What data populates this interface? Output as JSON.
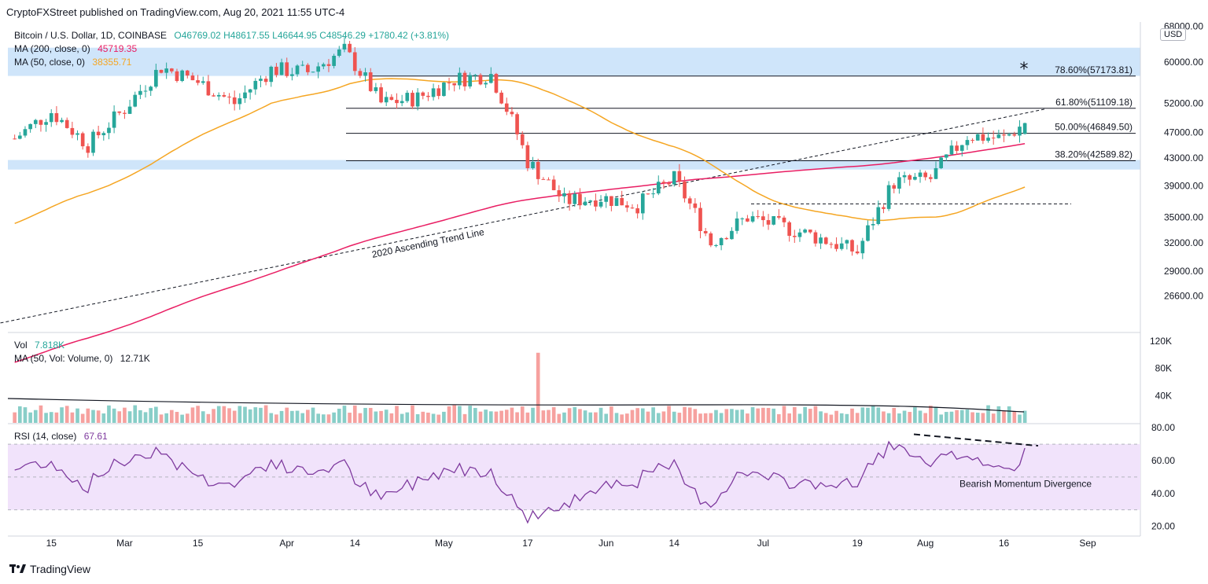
{
  "header": {
    "published": "CryptoFXStreet published on TradingView.com, Aug 20, 2021 11:55 UTC-4"
  },
  "legend": {
    "symbol": "Bitcoin / U.S. Dollar, 1D, COINBASE",
    "ohlc": "O46769.02  H48617.55  L46644.95  C48546.29  +1780.42 (+3.81%)",
    "ma200_label": "MA (200, close, 0)",
    "ma200_value": "45719.35",
    "ma50_label": "MA (50, close, 0)",
    "ma50_value": "38355.71",
    "vol_label": "Vol",
    "vol_value": "7.818K",
    "volma_label": "MA (50, Vol: Volume, 0)",
    "volma_value": "12.71K",
    "rsi_label": "RSI (14, close)",
    "rsi_value": "67.61"
  },
  "currency": "USD",
  "brand": "TradingView",
  "colors": {
    "up": "#26a69a",
    "down": "#ef5350",
    "ma200": "#e91e63",
    "ma50": "#f5a623",
    "rsi": "#7e3a9e",
    "zone": "#cfe5fa",
    "rsi_band": "#f1e3fb"
  },
  "chart_data": [
    {
      "type": "candlestick",
      "panel": "price",
      "x_tick_labels": [
        "15",
        "Mar",
        "15",
        "Apr",
        "14",
        "May",
        "17",
        "Jun",
        "14",
        "Jul",
        "19",
        "Aug",
        "16",
        "Sep"
      ],
      "y_tick_labels": [
        "68000.00",
        "60000.00",
        "52000.00",
        "47000.00",
        "43000.00",
        "39000.00",
        "35000.00",
        "32000.00",
        "29000.00",
        "26600.00"
      ],
      "y_scale": "log",
      "ylim": [
        23500,
        69000
      ],
      "fibonacci": [
        {
          "label": "78.60%(57173.81)",
          "value": 57173.81
        },
        {
          "label": "61.80%(51109.18)",
          "value": 51109.18
        },
        {
          "label": "50.00%(46849.50)",
          "value": 46849.5
        },
        {
          "label": "38.20%(42589.82)",
          "value": 42589.82
        }
      ],
      "support_level": 36650,
      "zones": [
        [
          57200,
          63100
        ],
        [
          41300,
          42700
        ]
      ],
      "annotations": [
        "2020 Ascending Trend Line",
        "*"
      ],
      "trend_line": [
        [
          "2021-01-27",
          23400
        ],
        [
          "2021-08-24",
          51000
        ]
      ],
      "last_candle": {
        "date": "2021-08-20",
        "open": 46769.02,
        "high": 48617.55,
        "low": 46644.95,
        "close": 48546.29
      },
      "closes_weekly": [
        {
          "date": "2021-02-08",
          "close": 46000
        },
        {
          "date": "2021-02-15",
          "close": 50500
        },
        {
          "date": "2021-02-22",
          "close": 45000
        },
        {
          "date": "2021-03-01",
          "close": 51000
        },
        {
          "date": "2021-03-08",
          "close": 59000
        },
        {
          "date": "2021-03-15",
          "close": 56000
        },
        {
          "date": "2021-03-22",
          "close": 52000
        },
        {
          "date": "2021-03-29",
          "close": 58500
        },
        {
          "date": "2021-04-05",
          "close": 58000
        },
        {
          "date": "2021-04-12",
          "close": 62500
        },
        {
          "date": "2021-04-19",
          "close": 52000
        },
        {
          "date": "2021-04-26",
          "close": 53000
        },
        {
          "date": "2021-05-03",
          "close": 56500
        },
        {
          "date": "2021-05-10",
          "close": 57500
        },
        {
          "date": "2021-05-17",
          "close": 42500
        },
        {
          "date": "2021-05-24",
          "close": 37000
        },
        {
          "date": "2021-05-31",
          "close": 37500
        },
        {
          "date": "2021-06-07",
          "close": 36500
        },
        {
          "date": "2021-06-14",
          "close": 40000
        },
        {
          "date": "2021-06-21",
          "close": 32000
        },
        {
          "date": "2021-06-28",
          "close": 35000
        },
        {
          "date": "2021-07-05",
          "close": 33800
        },
        {
          "date": "2021-07-12",
          "close": 32500
        },
        {
          "date": "2021-07-19",
          "close": 31000
        },
        {
          "date": "2021-07-26",
          "close": 39500
        },
        {
          "date": "2021-08-02",
          "close": 40000
        },
        {
          "date": "2021-08-09",
          "close": 46500
        },
        {
          "date": "2021-08-16",
          "close": 46000
        },
        {
          "date": "2021-08-20",
          "close": 48546
        }
      ]
    },
    {
      "type": "bar",
      "panel": "volume",
      "y_tick_labels": [
        "120K",
        "80K",
        "40K"
      ],
      "ylim": [
        0,
        120000
      ],
      "peak": {
        "date": "2021-05-19",
        "value": 110000
      }
    },
    {
      "type": "line",
      "panel": "rsi",
      "y_tick_labels": [
        "80.00",
        "60.00",
        "40.00",
        "20.00"
      ],
      "ylim": [
        15,
        82
      ],
      "bands": [
        30,
        50,
        70
      ],
      "annotations": [
        "Bearish Momentum Divergence"
      ],
      "last_value": 67.61
    }
  ]
}
